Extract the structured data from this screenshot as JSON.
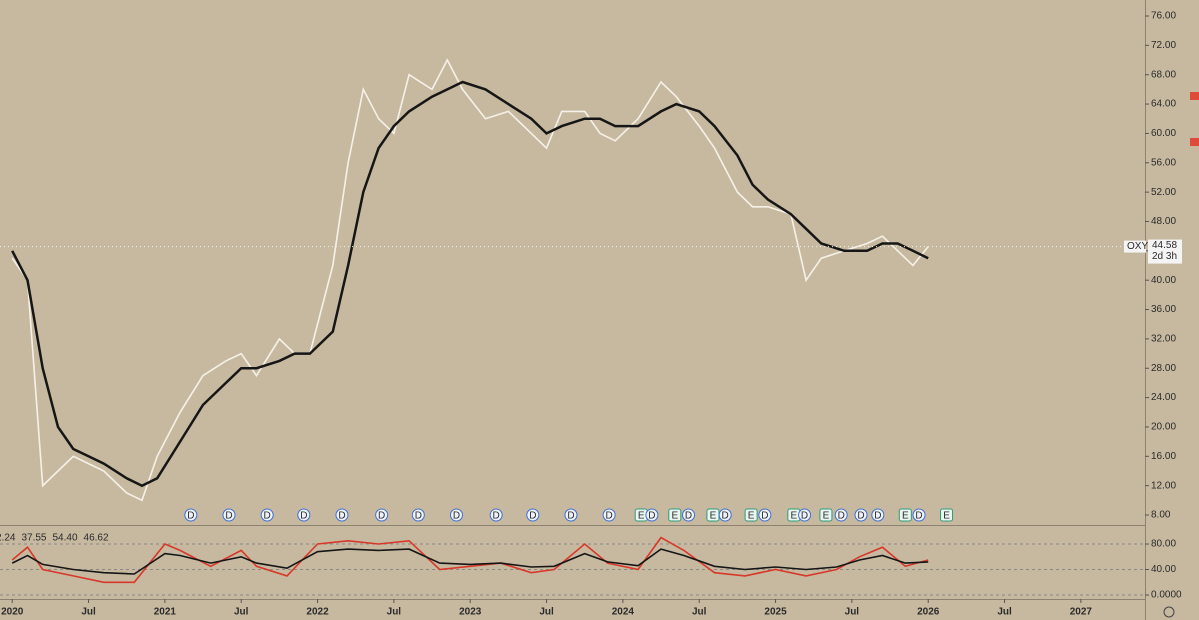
{
  "chart_data": [
    {
      "type": "line",
      "symbol": "OXY",
      "last_value": 44.58,
      "countdown": "2d 3h",
      "xlim": [
        2019.92,
        2027.42
      ],
      "ylim": [
        6.64,
        78.18
      ],
      "xticks": [
        {
          "value": 2020,
          "label": "2020"
        },
        {
          "value": 2020.5,
          "label": "Jul"
        },
        {
          "value": 2021,
          "label": "2021"
        },
        {
          "value": 2021.5,
          "label": "Jul"
        },
        {
          "value": 2022,
          "label": "2022"
        },
        {
          "value": 2022.5,
          "label": "Jul"
        },
        {
          "value": 2023,
          "label": "2023"
        },
        {
          "value": 2023.5,
          "label": "Jul"
        },
        {
          "value": 2024,
          "label": "2024"
        },
        {
          "value": 2024.5,
          "label": "Jul"
        },
        {
          "value": 2025,
          "label": "2025"
        },
        {
          "value": 2025.5,
          "label": "Jul"
        },
        {
          "value": 2026,
          "label": "2026"
        },
        {
          "value": 2026.5,
          "label": "Jul"
        },
        {
          "value": 2027,
          "label": "2027"
        }
      ],
      "yticks": [
        {
          "value": 8,
          "label": "8.00"
        },
        {
          "value": 12,
          "label": "12.00"
        },
        {
          "value": 16,
          "label": "16.00"
        },
        {
          "value": 20,
          "label": "20.00"
        },
        {
          "value": 24,
          "label": "24.00"
        },
        {
          "value": 28,
          "label": "28.00"
        },
        {
          "value": 32,
          "label": "32.00"
        },
        {
          "value": 36,
          "label": "36.00"
        },
        {
          "value": 40,
          "label": "40.00"
        },
        {
          "value": 44,
          "label": "44.00"
        },
        {
          "value": 48,
          "label": "48.00"
        },
        {
          "value": 52,
          "label": "52.00"
        },
        {
          "value": 56,
          "label": "56.00"
        },
        {
          "value": 60,
          "label": "60.00"
        },
        {
          "value": 64,
          "label": "64.00"
        },
        {
          "value": 68,
          "label": "68.00"
        },
        {
          "value": 72,
          "label": "72.00"
        },
        {
          "value": 76,
          "label": "76.00"
        }
      ],
      "x": [
        2020.0,
        2020.1,
        2020.2,
        2020.3,
        2020.4,
        2020.5,
        2020.6,
        2020.75,
        2020.85,
        2020.95,
        2021.1,
        2021.25,
        2021.4,
        2021.5,
        2021.6,
        2021.75,
        2021.85,
        2021.95,
        2022.1,
        2022.2,
        2022.3,
        2022.4,
        2022.5,
        2022.6,
        2022.75,
        2022.85,
        2022.95,
        2023.1,
        2023.25,
        2023.4,
        2023.5,
        2023.6,
        2023.75,
        2023.85,
        2023.95,
        2024.1,
        2024.25,
        2024.35,
        2024.5,
        2024.6,
        2024.75,
        2024.85,
        2024.95,
        2025.1,
        2025.2,
        2025.3,
        2025.45,
        2025.6,
        2025.7,
        2025.8,
        2025.9,
        2026.0
      ],
      "series": [
        {
          "name": "Price",
          "color": "#f6f1e8",
          "values": [
            43,
            40,
            12,
            14,
            16,
            15,
            14,
            11,
            10,
            16,
            22,
            27,
            29,
            30,
            27,
            32,
            30,
            30,
            42,
            56,
            66,
            62,
            60,
            68,
            66,
            70,
            66,
            62,
            63,
            60,
            58,
            63,
            63,
            60,
            59,
            62,
            67,
            65,
            61,
            58,
            52,
            50,
            50,
            49,
            40,
            43,
            44,
            45,
            46,
            44,
            42,
            44.58
          ]
        },
        {
          "name": "MA",
          "color": "#161616",
          "values": [
            44,
            40,
            28,
            20,
            17,
            16,
            15,
            13,
            12,
            13,
            18,
            23,
            26,
            28,
            28,
            29,
            30,
            30,
            33,
            42,
            52,
            58,
            61,
            63,
            65,
            66,
            67,
            66,
            64,
            62,
            60,
            61,
            62,
            62,
            61,
            61,
            63,
            64,
            63,
            61,
            57,
            53,
            51,
            49,
            47,
            45,
            44,
            44,
            45,
            45,
            44,
            43
          ]
        }
      ],
      "events": [
        {
          "x": 2021.17,
          "label": "D"
        },
        {
          "x": 2021.42,
          "label": "D"
        },
        {
          "x": 2021.67,
          "label": "D"
        },
        {
          "x": 2021.91,
          "label": "D"
        },
        {
          "x": 2022.16,
          "label": "D"
        },
        {
          "x": 2022.42,
          "label": "D"
        },
        {
          "x": 2022.66,
          "label": "D"
        },
        {
          "x": 2022.91,
          "label": "D"
        },
        {
          "x": 2023.17,
          "label": "D"
        },
        {
          "x": 2023.41,
          "label": "D"
        },
        {
          "x": 2023.66,
          "label": "D"
        },
        {
          "x": 2023.91,
          "label": "D"
        },
        {
          "x": 2024.12,
          "label": "E"
        },
        {
          "x": 2024.19,
          "label": "D"
        },
        {
          "x": 2024.34,
          "label": "E"
        },
        {
          "x": 2024.43,
          "label": "D"
        },
        {
          "x": 2024.59,
          "label": "E"
        },
        {
          "x": 2024.67,
          "label": "D"
        },
        {
          "x": 2024.84,
          "label": "E"
        },
        {
          "x": 2024.93,
          "label": "D"
        },
        {
          "x": 2025.12,
          "label": "E"
        },
        {
          "x": 2025.19,
          "label": "D"
        },
        {
          "x": 2025.33,
          "label": "E"
        },
        {
          "x": 2025.43,
          "label": "D"
        },
        {
          "x": 2025.56,
          "label": "D"
        },
        {
          "x": 2025.67,
          "label": "D"
        },
        {
          "x": 2025.85,
          "label": "E"
        },
        {
          "x": 2025.94,
          "label": "D"
        },
        {
          "x": 2026.12,
          "label": "E"
        }
      ]
    },
    {
      "type": "line",
      "legend_values": [
        {
          "text": "2.24",
          "color": "#3fae3f"
        },
        {
          "text": "37.55",
          "color": "#d8382a"
        },
        {
          "text": "54.40",
          "color": "#161616"
        },
        {
          "text": "46.62",
          "color": "#3fae3f"
        }
      ],
      "xlim": [
        2019.92,
        2027.42
      ],
      "ylim": [
        -4.7,
        106.7
      ],
      "yticks": [
        {
          "value": 0,
          "label": "0.0000"
        },
        {
          "value": 40,
          "label": "40.00"
        },
        {
          "value": 80,
          "label": "80.00"
        }
      ],
      "x": [
        2020.0,
        2020.1,
        2020.2,
        2020.4,
        2020.6,
        2020.8,
        2021.0,
        2021.1,
        2021.3,
        2021.5,
        2021.6,
        2021.8,
        2022.0,
        2022.2,
        2022.4,
        2022.6,
        2022.8,
        2023.0,
        2023.2,
        2023.4,
        2023.55,
        2023.75,
        2023.9,
        2024.1,
        2024.25,
        2024.4,
        2024.6,
        2024.8,
        2025.0,
        2025.2,
        2025.4,
        2025.55,
        2025.7,
        2025.85,
        2026.0
      ],
      "series": [
        {
          "name": "Oscillator",
          "color": "#d8382a",
          "values": [
            55,
            75,
            40,
            30,
            20,
            20,
            80,
            70,
            45,
            70,
            45,
            30,
            80,
            85,
            80,
            85,
            40,
            45,
            50,
            35,
            40,
            80,
            50,
            40,
            90,
            70,
            35,
            30,
            40,
            30,
            40,
            60,
            75,
            45,
            55
          ]
        },
        {
          "name": "Signal",
          "color": "#161616",
          "values": [
            50,
            62,
            48,
            40,
            35,
            33,
            65,
            62,
            50,
            60,
            50,
            42,
            68,
            72,
            70,
            72,
            50,
            48,
            50,
            44,
            45,
            65,
            52,
            46,
            72,
            62,
            45,
            40,
            44,
            40,
            44,
            55,
            62,
            50,
            52
          ]
        }
      ]
    }
  ]
}
